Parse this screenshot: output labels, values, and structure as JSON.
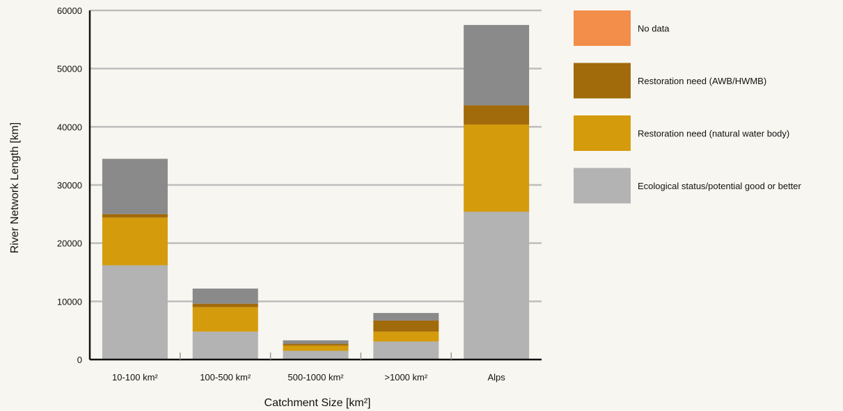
{
  "chart_data": {
    "type": "bar",
    "stacked": true,
    "title": "",
    "xlabel": "Catchment Size [km²]",
    "ylabel": "River Network Length [km]",
    "ylim": [
      0,
      60000
    ],
    "yticks": [
      "0",
      "10000",
      "20000",
      "30000",
      "40000",
      "50000",
      "60000"
    ],
    "grid": true,
    "legend_position": "right",
    "categories": [
      "10-100 km²",
      "100-500 km²",
      "500-1000 km²",
      ">1000 km²",
      "Alps"
    ],
    "series": [
      {
        "name": "Ecological status/potential good or better",
        "color": "#b3b3b3",
        "values": [
          16200,
          4800,
          1500,
          3100,
          25400
        ]
      },
      {
        "name": "Restoration need (natural water body)",
        "color": "#d49b0c",
        "values": [
          8200,
          4200,
          900,
          1700,
          15000
        ]
      },
      {
        "name": "Restoration need (AWB/HWMB)",
        "color": "#a16a0a",
        "values": [
          600,
          600,
          300,
          1900,
          3300
        ]
      },
      {
        "name": "No data",
        "color": "#f28e4a",
        "values": [
          0,
          0,
          0,
          0,
          0
        ]
      },
      {
        "name": "",
        "color": "#8a8a8a",
        "values": [
          9500,
          2600,
          600,
          1300,
          13800
        ]
      }
    ],
    "legend_order": [
      3,
      2,
      1,
      0
    ]
  }
}
